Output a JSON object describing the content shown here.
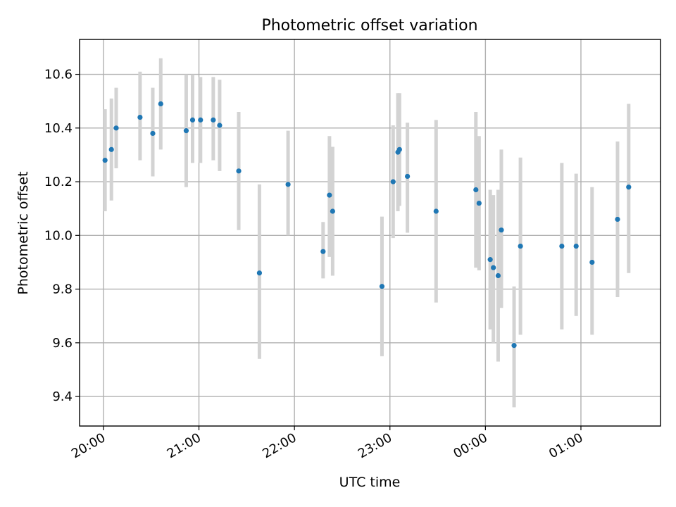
{
  "chart_data": {
    "type": "scatter",
    "title": "Photometric offset variation",
    "xlabel": "UTC time",
    "ylabel": "Photometric offset",
    "x_axis": {
      "kind": "time",
      "tick_values": [
        "20:00",
        "21:00",
        "22:00",
        "23:00",
        "00:00",
        "01:00"
      ],
      "tick_labels": [
        "20:00",
        "21:00",
        "22:00",
        "23:00",
        "00:00",
        "01:00"
      ],
      "xlim": [
        "19:45",
        "25:50"
      ]
    },
    "y_axis": {
      "tick_values": [
        9.4,
        9.6,
        9.8,
        10.0,
        10.2,
        10.4,
        10.6
      ],
      "tick_labels": [
        "9.4",
        "9.6",
        "9.8",
        "10.0",
        "10.2",
        "10.4",
        "10.6"
      ],
      "ylim": [
        9.29,
        10.73
      ]
    },
    "grid": true,
    "marker_color": "#1f77b4",
    "errorbar_color": "#d3d3d3",
    "series": [
      {
        "points": [
          {
            "x": "20:01",
            "y": 10.28,
            "ylo": 10.09,
            "yhi": 10.47
          },
          {
            "x": "20:05",
            "y": 10.32,
            "ylo": 10.13,
            "yhi": 10.51
          },
          {
            "x": "20:08",
            "y": 10.4,
            "ylo": 10.25,
            "yhi": 10.55
          },
          {
            "x": "20:23",
            "y": 10.44,
            "ylo": 10.28,
            "yhi": 10.61
          },
          {
            "x": "20:31",
            "y": 10.38,
            "ylo": 10.22,
            "yhi": 10.55
          },
          {
            "x": "20:36",
            "y": 10.49,
            "ylo": 10.32,
            "yhi": 10.66
          },
          {
            "x": "20:52",
            "y": 10.39,
            "ylo": 10.18,
            "yhi": 10.6
          },
          {
            "x": "20:56",
            "y": 10.43,
            "ylo": 10.27,
            "yhi": 10.6
          },
          {
            "x": "21:01",
            "y": 10.43,
            "ylo": 10.27,
            "yhi": 10.59
          },
          {
            "x": "21:09",
            "y": 10.43,
            "ylo": 10.28,
            "yhi": 10.59
          },
          {
            "x": "21:13",
            "y": 10.41,
            "ylo": 10.24,
            "yhi": 10.58
          },
          {
            "x": "21:25",
            "y": 10.24,
            "ylo": 10.02,
            "yhi": 10.46
          },
          {
            "x": "21:38",
            "y": 9.86,
            "ylo": 9.54,
            "yhi": 10.19
          },
          {
            "x": "21:56",
            "y": 10.19,
            "ylo": 10.0,
            "yhi": 10.39
          },
          {
            "x": "22:18",
            "y": 9.94,
            "ylo": 9.84,
            "yhi": 10.05
          },
          {
            "x": "22:22",
            "y": 10.15,
            "ylo": 9.92,
            "yhi": 10.37
          },
          {
            "x": "22:24",
            "y": 10.09,
            "ylo": 9.85,
            "yhi": 10.33
          },
          {
            "x": "22:55",
            "y": 9.81,
            "ylo": 9.55,
            "yhi": 10.07
          },
          {
            "x": "23:02",
            "y": 10.2,
            "ylo": 9.99,
            "yhi": 10.41
          },
          {
            "x": "23:05",
            "y": 10.31,
            "ylo": 10.09,
            "yhi": 10.53
          },
          {
            "x": "23:06",
            "y": 10.32,
            "ylo": 10.11,
            "yhi": 10.53
          },
          {
            "x": "23:11",
            "y": 10.22,
            "ylo": 10.01,
            "yhi": 10.42
          },
          {
            "x": "23:29",
            "y": 10.09,
            "ylo": 9.75,
            "yhi": 10.43
          },
          {
            "x": "23:54",
            "y": 10.17,
            "ylo": 9.88,
            "yhi": 10.46
          },
          {
            "x": "23:56",
            "y": 10.12,
            "ylo": 9.87,
            "yhi": 10.37
          },
          {
            "x": "24:03",
            "y": 9.91,
            "ylo": 9.65,
            "yhi": 10.17
          },
          {
            "x": "24:05",
            "y": 9.88,
            "ylo": 9.6,
            "yhi": 10.15
          },
          {
            "x": "24:08",
            "y": 9.85,
            "ylo": 9.53,
            "yhi": 10.17
          },
          {
            "x": "24:10",
            "y": 10.02,
            "ylo": 9.73,
            "yhi": 10.32
          },
          {
            "x": "24:18",
            "y": 9.59,
            "ylo": 9.36,
            "yhi": 9.81
          },
          {
            "x": "24:22",
            "y": 9.96,
            "ylo": 9.63,
            "yhi": 10.29
          },
          {
            "x": "24:48",
            "y": 9.96,
            "ylo": 9.65,
            "yhi": 10.27
          },
          {
            "x": "24:57",
            "y": 9.96,
            "ylo": 9.7,
            "yhi": 10.23
          },
          {
            "x": "25:07",
            "y": 9.9,
            "ylo": 9.63,
            "yhi": 10.18
          },
          {
            "x": "25:23",
            "y": 10.06,
            "ylo": 9.77,
            "yhi": 10.35
          },
          {
            "x": "25:30",
            "y": 10.18,
            "ylo": 9.86,
            "yhi": 10.49
          }
        ]
      }
    ]
  }
}
